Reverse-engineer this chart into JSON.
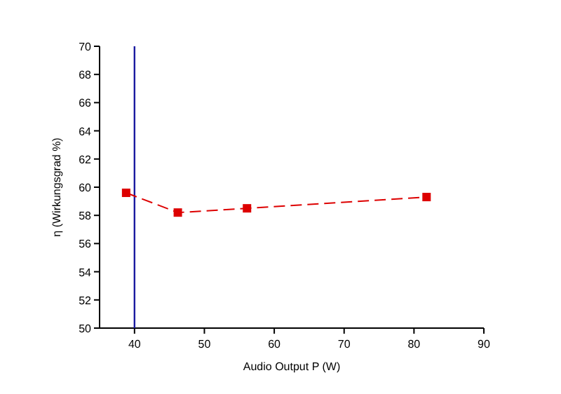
{
  "chart_data": {
    "type": "line",
    "xlabel": "Audio Output P (W)",
    "ylabel": "η (Wirkungsgrad %)",
    "series": [
      {
        "color": "#dd0000",
        "x": [
          38.8,
          46.2,
          56.1,
          81.8
        ],
        "values": [
          59.6,
          58.2,
          58.5,
          59.3
        ]
      }
    ],
    "xlim": [
      35,
      90
    ],
    "xticks": [
      40,
      50,
      60,
      70,
      80,
      90
    ],
    "ylim": [
      50,
      70
    ],
    "yticks": [
      50,
      52,
      54,
      56,
      58,
      60,
      62,
      64,
      66,
      68,
      70
    ],
    "marker": "square",
    "line_style": "dashed",
    "ref_lines": [
      {
        "axis": "x",
        "value": 40,
        "color": "#1a1aa0"
      }
    ]
  }
}
